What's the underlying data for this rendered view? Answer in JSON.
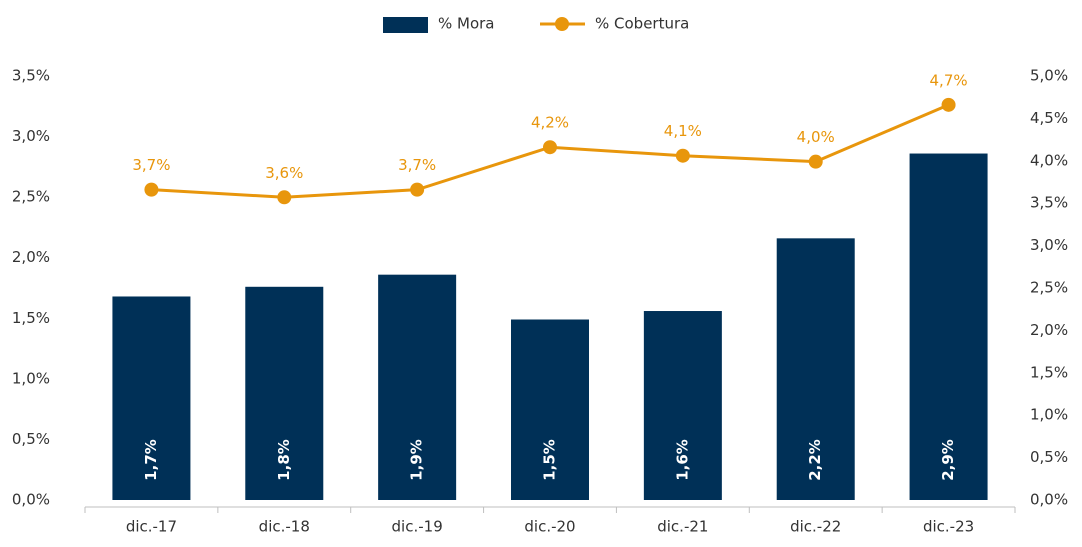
{
  "chart_data": {
    "type": "bar",
    "categories": [
      "dic.-17",
      "dic.-18",
      "dic.-19",
      "dic.-20",
      "dic.-21",
      "dic.-22",
      "dic.-23"
    ],
    "series": [
      {
        "name": "% Mora",
        "type": "bar",
        "color": "#003057",
        "values": [
          1.68,
          1.76,
          1.86,
          1.49,
          1.56,
          2.16,
          2.86
        ],
        "value_labels": [
          "1,7%",
          "1,8%",
          "1,9%",
          "1,5%",
          "1,6%",
          "2,2%",
          "2,9%"
        ]
      },
      {
        "name": "% Cobertura",
        "type": "line",
        "axis": "y2",
        "color": "#e8960c",
        "values": [
          3.66,
          3.57,
          3.66,
          4.16,
          4.06,
          3.99,
          4.66
        ],
        "value_labels": [
          "3,7%",
          "3,6%",
          "3,7%",
          "4,2%",
          "4,1%",
          "4,0%",
          "4,7%"
        ]
      }
    ],
    "ylim": [
      0,
      3.5
    ],
    "yticks": [
      {
        "value": 0,
        "label": "0,0%"
      },
      {
        "value": 0.5,
        "label": "0,5%"
      },
      {
        "value": 1,
        "label": "1,0%"
      },
      {
        "value": 1.5,
        "label": "1,5%"
      },
      {
        "value": 2,
        "label": "2,0%"
      },
      {
        "value": 2.5,
        "label": "2,5%"
      },
      {
        "value": 3,
        "label": "3,0%"
      },
      {
        "value": 3.5,
        "label": "3,5%"
      }
    ],
    "y2lim": [
      0,
      5
    ],
    "y2ticks": [
      {
        "value": 0,
        "label": "0,0%"
      },
      {
        "value": 0.5,
        "label": "0,5%"
      },
      {
        "value": 1,
        "label": "1,0%"
      },
      {
        "value": 1.5,
        "label": "1,5%"
      },
      {
        "value": 2,
        "label": "2,0%"
      },
      {
        "value": 2.5,
        "label": "2,5%"
      },
      {
        "value": 3,
        "label": "3,0%"
      },
      {
        "value": 3.5,
        "label": "3,5%"
      },
      {
        "value": 4,
        "label": "4,0%"
      },
      {
        "value": 4.5,
        "label": "4,5%"
      },
      {
        "value": 5,
        "label": "5,0%"
      }
    ],
    "legend": "top"
  }
}
